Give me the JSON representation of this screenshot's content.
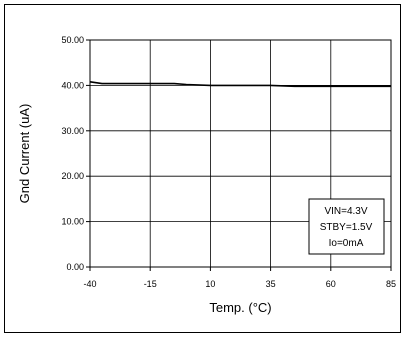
{
  "chart_data": {
    "type": "line",
    "xlabel": "Temp. (°C)",
    "ylabel": "Gnd Current (uA)",
    "xlim": [
      -40,
      85
    ],
    "ylim": [
      0,
      50
    ],
    "x_ticks": [
      -40,
      -15,
      10,
      35,
      60,
      85
    ],
    "y_ticks": [
      "0.00",
      "10.00",
      "20.00",
      "30.00",
      "40.00",
      "50.00"
    ],
    "grid": true,
    "series": [
      {
        "x": [
          -40,
          -35,
          -15,
          -5,
          0,
          10,
          35,
          45,
          60,
          85
        ],
        "y": [
          40.8,
          40.4,
          40.4,
          40.4,
          40.2,
          40.0,
          40.0,
          39.8,
          39.8,
          39.8
        ]
      }
    ],
    "annotation": [
      "VIN=4.3V",
      "STBY=1.5V",
      "Io=0mA"
    ]
  }
}
